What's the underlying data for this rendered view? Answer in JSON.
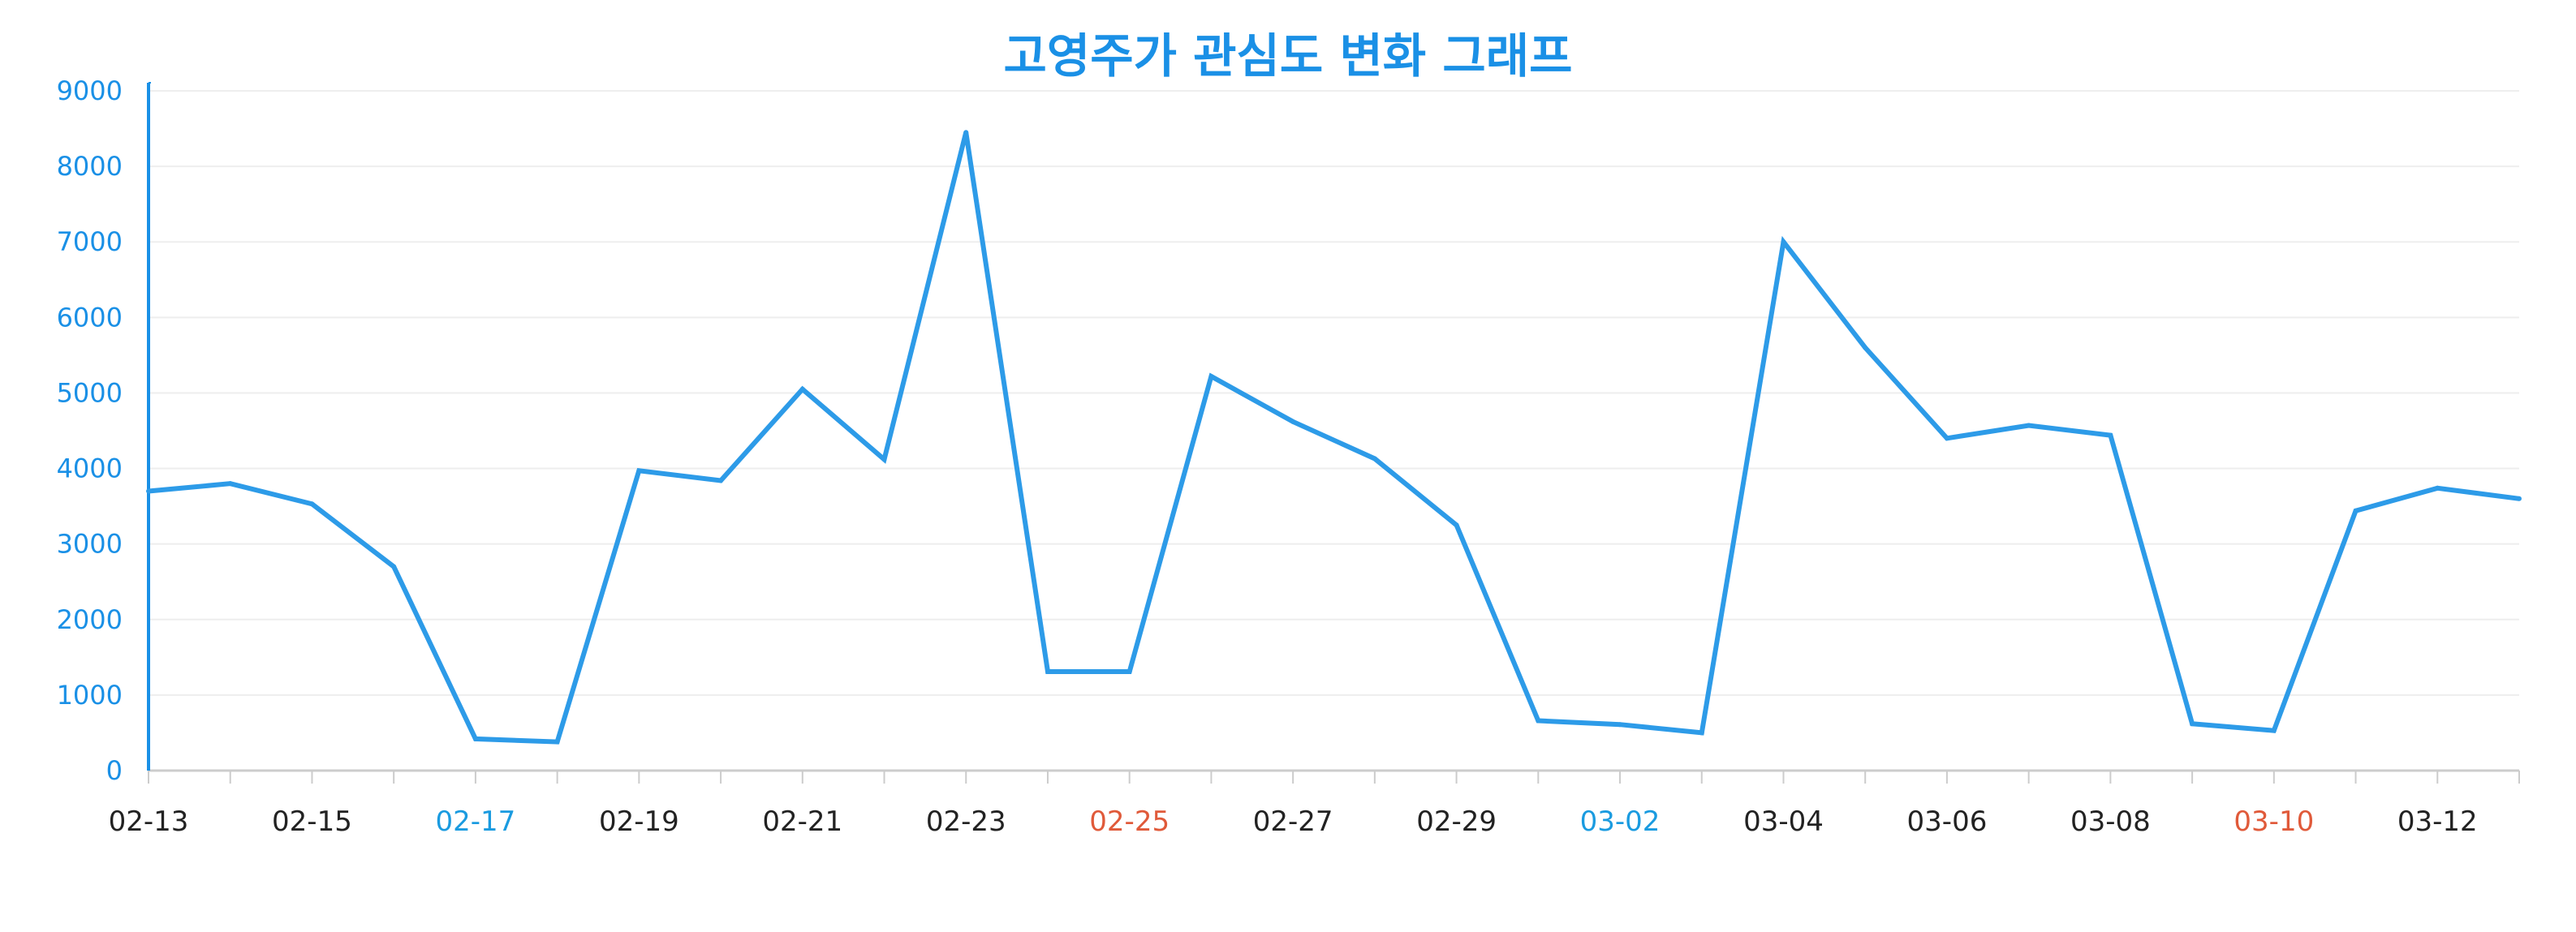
{
  "chart_data": {
    "type": "line",
    "title": "고영주가 관심도 변화 그래프",
    "xlabel": "",
    "ylabel": "",
    "ylim": [
      0,
      9000
    ],
    "yticks": [
      0,
      1000,
      2000,
      3000,
      4000,
      5000,
      6000,
      7000,
      8000,
      9000
    ],
    "grid": true,
    "x": [
      "02-13",
      "02-14",
      "02-15",
      "02-16",
      "02-17",
      "02-18",
      "02-19",
      "02-20",
      "02-21",
      "02-22",
      "02-23",
      "02-24",
      "02-25",
      "02-26",
      "02-27",
      "02-28",
      "02-29",
      "03-01",
      "03-02",
      "03-03",
      "03-04",
      "03-05",
      "03-06",
      "03-07",
      "03-08",
      "03-09",
      "03-10",
      "03-11",
      "03-12",
      "03-13"
    ],
    "xtick_labels": [
      "02-13",
      "02-15",
      "02-17",
      "02-19",
      "02-21",
      "02-23",
      "02-25",
      "02-27",
      "02-29",
      "03-02",
      "03-04",
      "03-06",
      "03-08",
      "03-10",
      "03-12"
    ],
    "series": [
      {
        "values": [
          3700,
          3800,
          3530,
          2700,
          420,
          380,
          3970,
          3840,
          5050,
          4120,
          8450,
          1310,
          1310,
          5220,
          4620,
          4130,
          3250,
          660,
          610,
          500,
          7000,
          5600,
          4400,
          4570,
          4440,
          620,
          530,
          3440,
          3740,
          3600
        ]
      }
    ],
    "colors": {
      "line": "#2d9be8",
      "axis": "#1a90e6",
      "ytick_label": "#1a90e6",
      "grid": "#eeeeee",
      "xaxis": "#cccccc",
      "xtick_default": "#222222",
      "xtick_saturday": "#1a9be0",
      "xtick_sunday": "#e05a3a",
      "title": "#1a90e6"
    },
    "xtick_label_colors": {
      "02-17": "xtick_saturday",
      "03-02": "xtick_saturday",
      "02-25": "xtick_sunday",
      "03-10": "xtick_sunday"
    }
  }
}
